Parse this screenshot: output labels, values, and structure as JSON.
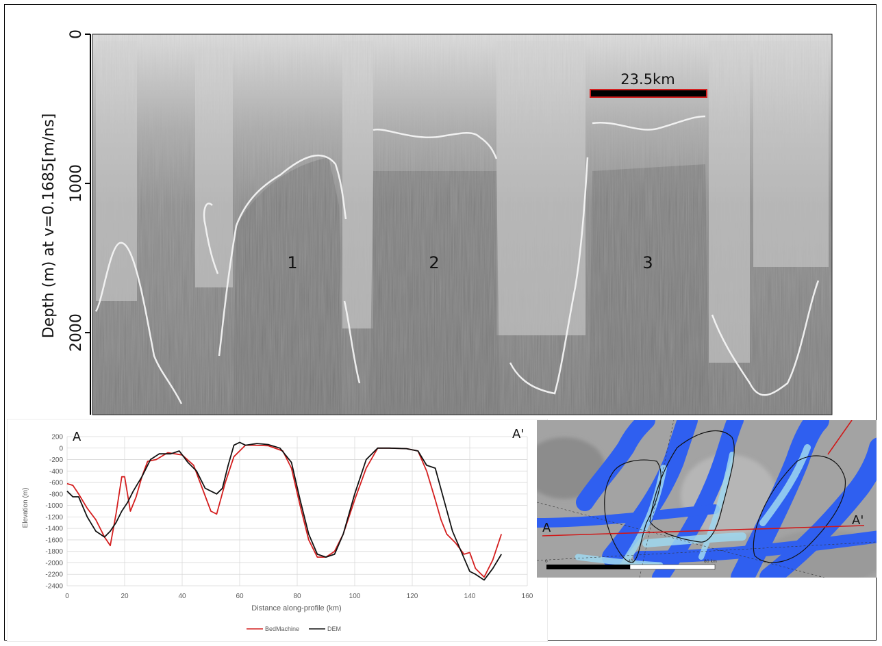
{
  "chart_data": [
    {
      "type": "radargram",
      "ylabel": "Depth (m) at v=0.1685[m/ns]",
      "y_ticks": [
        "0",
        "1000",
        "2000"
      ],
      "ylim": [
        0,
        2550
      ],
      "y_inverted": true,
      "scale_bar_label": "23.5km",
      "basin_labels": [
        "1",
        "2",
        "3"
      ]
    },
    {
      "type": "line",
      "xlabel": "Distance along-profile (km)",
      "ylabel": "Elevation (m)",
      "xlim": [
        0,
        160
      ],
      "ylim": [
        -2400,
        200
      ],
      "x_ticks": [
        "0",
        "20",
        "40",
        "60",
        "80",
        "100",
        "120",
        "140",
        "160"
      ],
      "y_ticks": [
        "200",
        "0",
        "-200",
        "-400",
        "-600",
        "-800",
        "-1000",
        "-1200",
        "-1400",
        "-1600",
        "-1800",
        "-2000",
        "-2200",
        "-2400"
      ],
      "grid": true,
      "legend_position": "bottom",
      "corner_labels": [
        "A",
        "A'"
      ],
      "series": [
        {
          "name": "BedMachine",
          "color": "#d41f1f",
          "x": [
            0,
            2,
            4,
            7,
            10,
            13,
            15,
            17,
            19,
            20,
            22,
            24,
            26,
            28,
            31,
            35,
            40,
            44,
            47,
            50,
            52,
            55,
            58,
            62,
            65,
            70,
            75,
            78,
            81,
            84,
            87,
            90,
            93,
            96,
            100,
            104,
            108,
            112,
            118,
            122,
            125,
            128,
            130,
            132,
            135,
            138,
            140,
            142,
            145,
            148,
            151
          ],
          "y": [
            -620,
            -650,
            -800,
            -1050,
            -1250,
            -1550,
            -1700,
            -1150,
            -500,
            -500,
            -1100,
            -850,
            -500,
            -230,
            -200,
            -80,
            -120,
            -300,
            -700,
            -1100,
            -1150,
            -600,
            -150,
            50,
            50,
            40,
            -50,
            -350,
            -1000,
            -1600,
            -1900,
            -1900,
            -1800,
            -1500,
            -900,
            -350,
            0,
            0,
            -10,
            -50,
            -400,
            -900,
            -1250,
            -1500,
            -1650,
            -1850,
            -1820,
            -2100,
            -2250,
            -1950,
            -1500
          ]
        },
        {
          "name": "DEM",
          "color": "#111111",
          "x": [
            0,
            2,
            4,
            7,
            10,
            13,
            15,
            17,
            19,
            21,
            23,
            26,
            29,
            32,
            36,
            39,
            42,
            45,
            48,
            50,
            52,
            54,
            56,
            58,
            60,
            62,
            66,
            70,
            74,
            78,
            81,
            84,
            87,
            90,
            93,
            96,
            100,
            104,
            108,
            112,
            118,
            122,
            125,
            128,
            131,
            134,
            137,
            140,
            142,
            145,
            148,
            151
          ],
          "y": [
            -750,
            -850,
            -850,
            -1200,
            -1450,
            -1550,
            -1450,
            -1300,
            -1100,
            -950,
            -750,
            -500,
            -200,
            -100,
            -100,
            -50,
            -250,
            -400,
            -700,
            -750,
            -800,
            -700,
            -300,
            50,
            100,
            50,
            80,
            60,
            0,
            -250,
            -900,
            -1500,
            -1850,
            -1900,
            -1850,
            -1500,
            -800,
            -200,
            0,
            0,
            -10,
            -50,
            -300,
            -350,
            -900,
            -1450,
            -1800,
            -2150,
            -2200,
            -2300,
            -2100,
            -1850
          ]
        }
      ]
    }
  ],
  "map_panel": {
    "label_a": "A",
    "label_a_prime": "A'",
    "scale_labels": [
      "0",
      "40",
      "80 km"
    ],
    "colors": {
      "profile_line": "#d01818",
      "ice_flow": "#2f5ff0",
      "fast_flow": "#9fd8f0"
    }
  }
}
